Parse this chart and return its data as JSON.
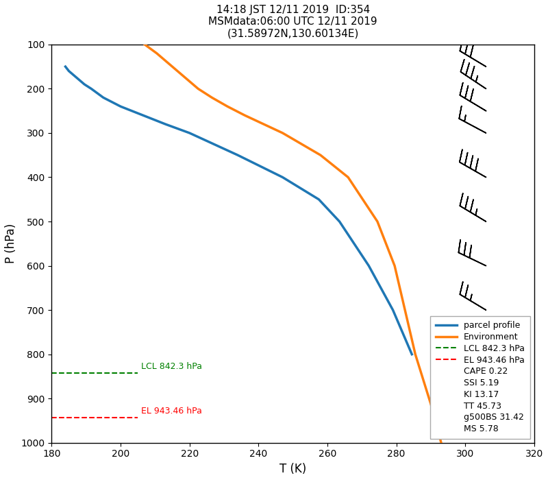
{
  "title": "14:18 JST 12/11 2019  ID:354\nMSMdata:06:00 UTC 12/11 2019\n(31.58972N,130.60134E)",
  "xlabel": "T (K)",
  "ylabel": "P (hPa)",
  "xlim": [
    180,
    320
  ],
  "ylim_top": 100,
  "ylim_bottom": 1000,
  "xticks": [
    180,
    200,
    220,
    240,
    260,
    280,
    300,
    320
  ],
  "yticks": [
    100,
    200,
    300,
    400,
    500,
    600,
    700,
    800,
    900,
    1000
  ],
  "parcel_color": "#1f77b4",
  "env_color": "#ff7f0e",
  "lcl_color": "green",
  "el_color": "red",
  "lcl_pressure": 842.3,
  "el_pressure": 943.46,
  "lcl_label": "LCL 842.3 hPa",
  "el_label": "EL 943.46 hPa",
  "legend_texts": [
    "parcel profile",
    "Environment",
    "LCL 842.3 hPa",
    "EL 943.46 hPa",
    "CAPE 0.22",
    "SSI 5.19",
    "KI 13.17",
    "TT 45.73",
    "g500BS 31.42",
    "MS 5.78"
  ],
  "parcel_P": [
    150,
    160,
    170,
    180,
    190,
    200,
    220,
    240,
    260,
    280,
    300,
    350,
    400,
    450,
    500,
    600,
    700,
    800
  ],
  "parcel_T": [
    184.0,
    185.0,
    186.5,
    188.0,
    189.5,
    191.5,
    195.0,
    200.0,
    206.5,
    213.0,
    220.0,
    234.0,
    247.0,
    257.5,
    263.5,
    272.0,
    279.0,
    284.5
  ],
  "env_P": [
    100,
    120,
    140,
    160,
    180,
    200,
    220,
    240,
    260,
    280,
    300,
    350,
    400,
    500,
    600,
    700,
    800,
    850,
    925,
    1000
  ],
  "env_T": [
    207.0,
    210.5,
    213.5,
    216.5,
    219.5,
    222.5,
    226.5,
    231.0,
    236.0,
    241.5,
    247.0,
    258.0,
    266.0,
    274.5,
    279.5,
    282.5,
    285.5,
    287.5,
    290.5,
    293.0
  ],
  "barb_pressures": [
    100,
    150,
    200,
    250,
    300,
    400,
    500,
    600,
    700,
    850,
    925
  ],
  "barb_x_data": 306,
  "barb_u": [
    15,
    25,
    30,
    25,
    15,
    35,
    30,
    25,
    20,
    20,
    35
  ],
  "barb_v": [
    -8,
    -15,
    -20,
    -15,
    -8,
    -20,
    -18,
    -12,
    -12,
    -10,
    -20
  ],
  "background_color": "white"
}
